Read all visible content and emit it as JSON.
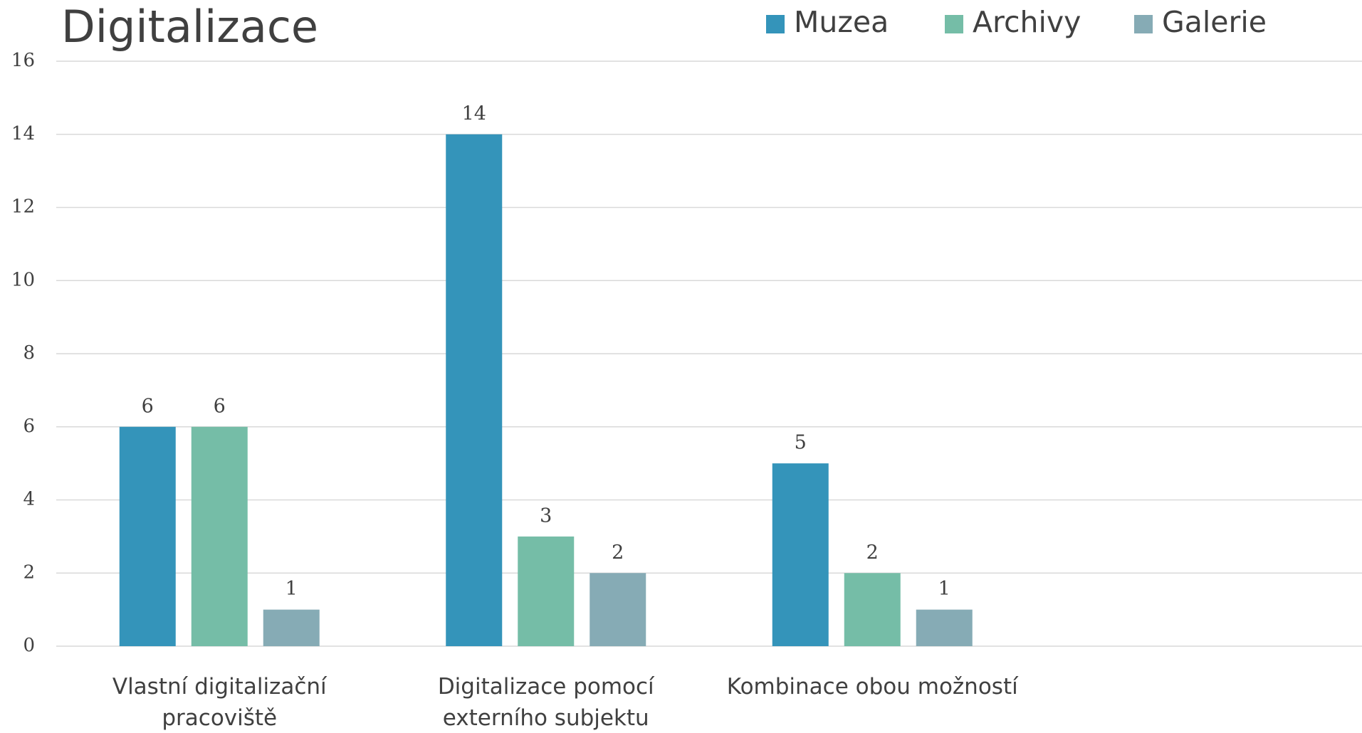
{
  "chart_data": {
    "type": "bar",
    "title": "Digitalizace",
    "categories": [
      "Vlastní digitalizační pracoviště",
      "Digitalizace pomocí externího subjektu",
      "Kombinace obou možností",
      null
    ],
    "series": [
      {
        "name": "Muzea",
        "color": "#3494ba",
        "values": [
          6,
          14,
          5,
          null
        ]
      },
      {
        "name": "Archivy",
        "color": "#75bda7",
        "values": [
          6,
          3,
          2,
          null
        ]
      },
      {
        "name": "Galerie",
        "color": "#86abb5",
        "values": [
          1,
          2,
          1,
          null
        ]
      }
    ],
    "ylim": [
      0,
      16
    ],
    "yticks": [
      0,
      2,
      4,
      6,
      8,
      10,
      12,
      14,
      16
    ],
    "grid": true,
    "legend": "top-right"
  }
}
